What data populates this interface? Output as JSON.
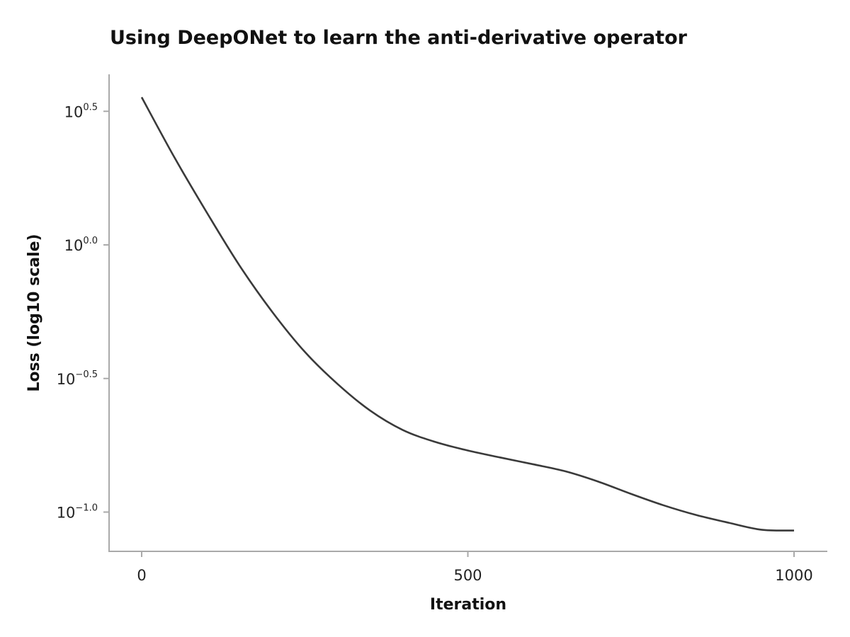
{
  "chart_data": {
    "type": "line",
    "title": "Using DeepONet to learn the anti-derivative operator",
    "xlabel": "Iteration",
    "ylabel": "Loss (log10 scale)",
    "yscale": "log10",
    "xlim": [
      -50,
      1050
    ],
    "ylim": [
      0.074,
      4.3
    ],
    "grid": false,
    "xticks": [
      {
        "value": 0,
        "label": "0"
      },
      {
        "value": 500,
        "label": "500"
      },
      {
        "value": 1000,
        "label": "1000"
      }
    ],
    "yticks": [
      {
        "exponent": 0.5,
        "base": "10",
        "sup": "0.5"
      },
      {
        "exponent": 0.0,
        "base": "10",
        "sup": "0.0"
      },
      {
        "exponent": -0.5,
        "base": "10",
        "sup": "−0.5"
      },
      {
        "exponent": -1.0,
        "base": "10",
        "sup": "−1.0"
      }
    ],
    "line_color": "#3a3a3a",
    "axis_color": "#aaaaaa",
    "series": [
      {
        "x": [
          0,
          50,
          100,
          150,
          200,
          250,
          300,
          350,
          400,
          450,
          500,
          550,
          600,
          650,
          700,
          750,
          800,
          850,
          900,
          950,
          1000
        ],
        "y": [
          3.57,
          2.13,
          1.32,
          0.837,
          0.562,
          0.398,
          0.302,
          0.24,
          0.203,
          0.183,
          0.17,
          0.16,
          0.151,
          0.142,
          0.13,
          0.117,
          0.106,
          0.0975,
          0.0912,
          0.0859,
          0.0853
        ]
      }
    ]
  }
}
